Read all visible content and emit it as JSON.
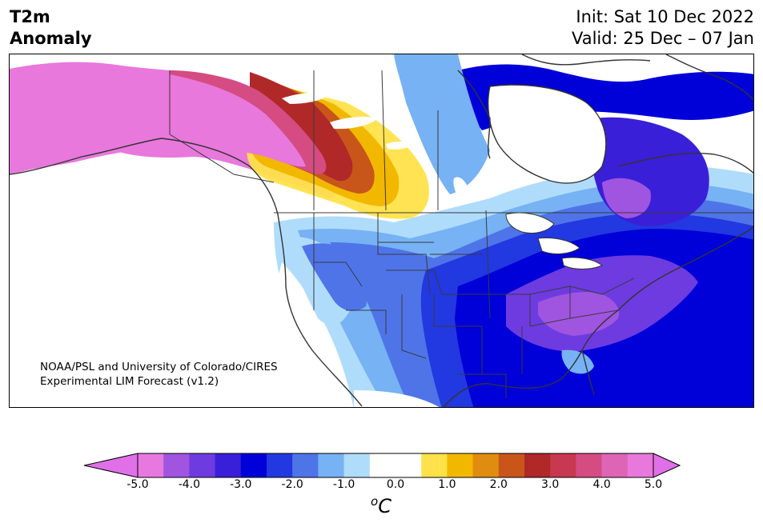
{
  "title": {
    "line1": "T2m",
    "line2": "Anomaly"
  },
  "init": "Init: Sat 10 Dec 2022",
  "valid": "Valid: 25 Dec – 07 Jan",
  "credit": {
    "line1": "NOAA/PSL and University of Colorado/CIRES",
    "line2": "Experimental LIM Forecast (v1.2)"
  },
  "colorbar": {
    "unit_super": "o",
    "unit_main": "C",
    "ticks": [
      "-5.0",
      "-4.0",
      "-3.0",
      "-2.0",
      "-1.0",
      "0.0",
      "1.0",
      "2.0",
      "3.0",
      "4.0",
      "5.0"
    ],
    "levels": [
      -5.0,
      -4.5,
      -4.0,
      -3.5,
      -3.0,
      -2.5,
      -2.0,
      -1.5,
      -1.0,
      -0.5,
      0.5,
      1.0,
      1.5,
      2.0,
      2.5,
      3.0,
      3.5,
      4.0,
      4.5,
      5.0
    ],
    "colors": [
      "#e878e0",
      "#9f55e0",
      "#6e3be0",
      "#3a1fd8",
      "#0000d8",
      "#2238e0",
      "#4f74e8",
      "#76b2f4",
      "#b0dcfc",
      "#ffffff",
      "#fff0f0",
      "#ffe24a",
      "#f2b800",
      "#e08c10",
      "#c8561a",
      "#b02828",
      "#c83850",
      "#d44c82",
      "#de64b6",
      "#e878dc"
    ],
    "under_color": "#e070e8",
    "over_color": "#e070e8"
  }
}
